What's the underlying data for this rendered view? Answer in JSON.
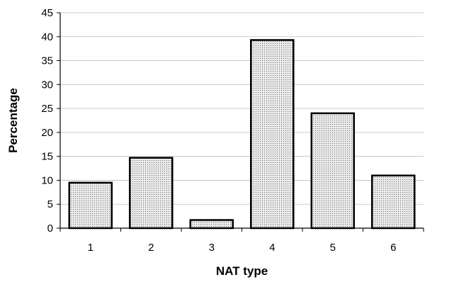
{
  "chart_data": {
    "type": "bar",
    "title": "",
    "xlabel": "NAT type",
    "ylabel": "Percentage",
    "categories": [
      "1",
      "2",
      "3",
      "4",
      "5",
      "6"
    ],
    "values": [
      9.5,
      14.7,
      1.7,
      39.3,
      24.0,
      11.0
    ],
    "ylim": [
      0,
      45
    ],
    "yticks": [
      "0",
      "5",
      "10",
      "15",
      "20",
      "25",
      "30",
      "35",
      "40",
      "45"
    ],
    "grid": true,
    "legend": "none",
    "colors": {
      "bar_fill": "#e9e9e9",
      "bar_dots": "#6e6e6e",
      "bar_stroke": "#000000",
      "grid": "#bdbdbd",
      "axis": "#000000"
    }
  }
}
